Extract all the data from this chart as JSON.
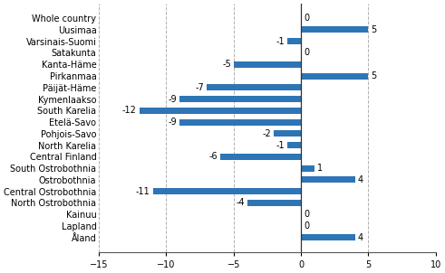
{
  "categories": [
    "Whole country",
    "Uusimaa",
    "Varsinais-Suomi",
    "Satakunta",
    "Kanta-Häme",
    "Pirkanmaa",
    "Päijät-Häme",
    "Kymenlaakso",
    "South Karelia",
    "Etelä-Savo",
    "Pohjois-Savo",
    "North Karelia",
    "Central Finland",
    "South Ostrobothnia",
    "Ostrobothnia",
    "Central Ostrobothnia",
    "North Ostrobothnia",
    "Kainuu",
    "Lapland",
    "Åland"
  ],
  "values": [
    0,
    5,
    -1,
    0,
    -5,
    5,
    -7,
    -9,
    -12,
    -9,
    -2,
    -1,
    -6,
    1,
    4,
    -11,
    -4,
    0,
    0,
    4
  ],
  "bar_color": "#2e75b6",
  "xlim": [
    -15,
    10
  ],
  "xticks": [
    -15,
    -10,
    -5,
    0,
    5,
    10
  ],
  "grid_color": "#b0b0b0",
  "label_fontsize": 7.0,
  "bar_height": 0.55
}
